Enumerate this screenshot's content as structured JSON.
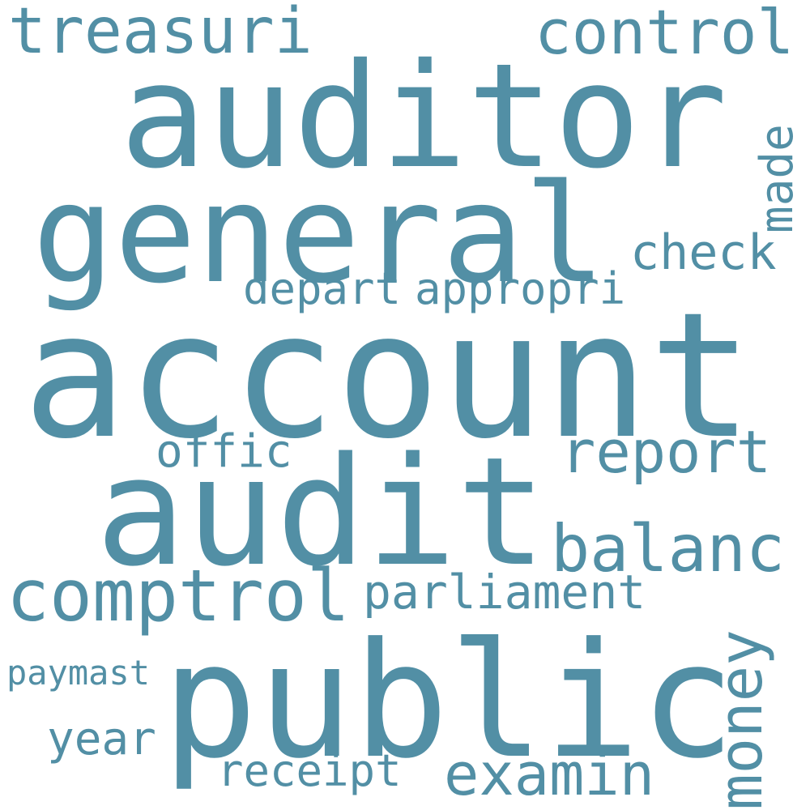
{
  "word_cloud": {
    "color": "#528fa5",
    "background": "#ffffff",
    "words": [
      {
        "text": "account",
        "orientation": "horizontal"
      },
      {
        "text": "public",
        "orientation": "horizontal"
      },
      {
        "text": "auditor",
        "orientation": "horizontal"
      },
      {
        "text": "general",
        "orientation": "horizontal"
      },
      {
        "text": "audit",
        "orientation": "horizontal"
      },
      {
        "text": "comptrol",
        "orientation": "horizontal"
      },
      {
        "text": "balanc",
        "orientation": "horizontal"
      },
      {
        "text": "treasuri",
        "orientation": "horizontal"
      },
      {
        "text": "control",
        "orientation": "horizontal"
      },
      {
        "text": "money",
        "orientation": "vertical"
      },
      {
        "text": "report",
        "orientation": "horizontal"
      },
      {
        "text": "examin",
        "orientation": "horizontal"
      },
      {
        "text": "parliament",
        "orientation": "horizontal"
      },
      {
        "text": "check",
        "orientation": "horizontal"
      },
      {
        "text": "appropri",
        "orientation": "horizontal"
      },
      {
        "text": "depart",
        "orientation": "horizontal"
      },
      {
        "text": "offic",
        "orientation": "horizontal"
      },
      {
        "text": "year",
        "orientation": "horizontal"
      },
      {
        "text": "receipt",
        "orientation": "horizontal"
      },
      {
        "text": "made",
        "orientation": "vertical"
      },
      {
        "text": "paymast",
        "orientation": "horizontal"
      }
    ]
  }
}
